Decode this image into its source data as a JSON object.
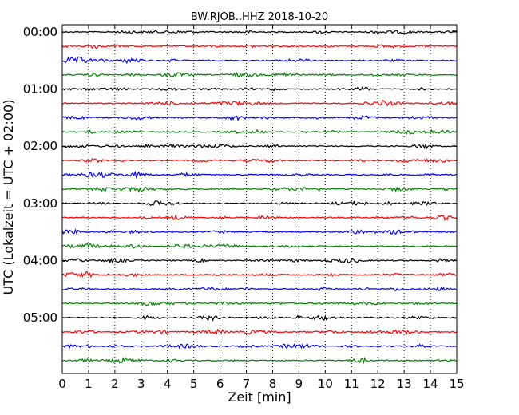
{
  "chart_data": {
    "type": "line",
    "title": "BW.RJOB..HHZ 2018-10-20",
    "xlabel": "Zeit  [min]",
    "ylabel": "UTC (Lokalzeit = UTC + 02:00)",
    "x_range": [
      0,
      15
    ],
    "x_ticks": [
      "0",
      "1",
      "2",
      "3",
      "4",
      "5",
      "6",
      "7",
      "8",
      "9",
      "10",
      "11",
      "12",
      "13",
      "14",
      "15"
    ],
    "y_tick_labels": [
      "00:00",
      "01:00",
      "02:00",
      "03:00",
      "04:00",
      "05:00"
    ],
    "rows_per_hour": 4,
    "row_count": 24,
    "row_minutes": 15,
    "row_start_times": [
      "00:00",
      "00:15",
      "00:30",
      "00:45",
      "01:00",
      "01:15",
      "01:30",
      "01:45",
      "02:00",
      "02:15",
      "02:30",
      "02:45",
      "03:00",
      "03:15",
      "03:30",
      "03:45",
      "04:00",
      "04:15",
      "04:30",
      "04:45",
      "05:00",
      "05:15",
      "05:30",
      "05:45"
    ],
    "trace_colors": [
      "#000000",
      "#ff0000",
      "#0000ff",
      "#008000"
    ],
    "grid": {
      "vertical_dotted": true,
      "horizontal": false
    }
  }
}
